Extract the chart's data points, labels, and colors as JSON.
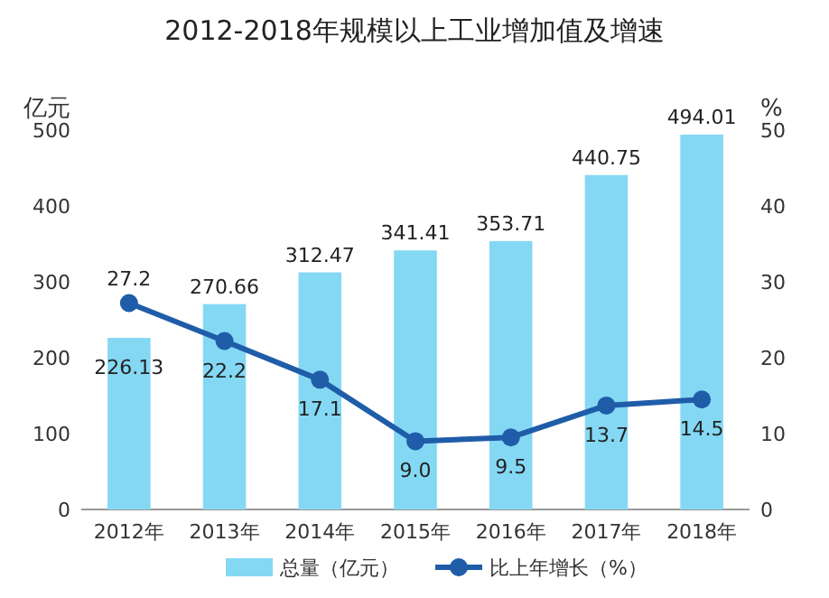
{
  "chart_data": {
    "type": "bar",
    "title": "2012-2018年规模以上工业增加值及增速",
    "categories": [
      "2012年",
      "2013年",
      "2014年",
      "2015年",
      "2016年",
      "2017年",
      "2018年"
    ],
    "series": [
      {
        "name": "总量（亿元）",
        "color": "#84d8f4",
        "values": [
          226.13,
          270.66,
          312.47,
          341.41,
          353.71,
          440.75,
          494.01
        ],
        "value_labels": [
          "226.13",
          "270.66",
          "312.47",
          "341.41",
          "353.71",
          "440.75",
          "494.01"
        ]
      },
      {
        "name": "比上年增长（%）",
        "type": "line",
        "axis": "y2",
        "color": "#1f5da8",
        "values": [
          27.2,
          22.2,
          17.1,
          9.0,
          9.5,
          13.7,
          14.5
        ],
        "value_labels": [
          "27.2",
          "22.2",
          "17.1",
          "9.0",
          "9.5",
          "13.7",
          "14.5"
        ]
      }
    ],
    "ylabel": "亿元",
    "y2label": "%",
    "ylim": [
      0,
      500
    ],
    "yticks": [
      0,
      100,
      200,
      300,
      400,
      500
    ],
    "y2lim": [
      0,
      50
    ],
    "y2ticks": [
      0,
      10,
      20,
      30,
      40,
      50
    ],
    "legend": "bottom",
    "marker": "circle"
  }
}
